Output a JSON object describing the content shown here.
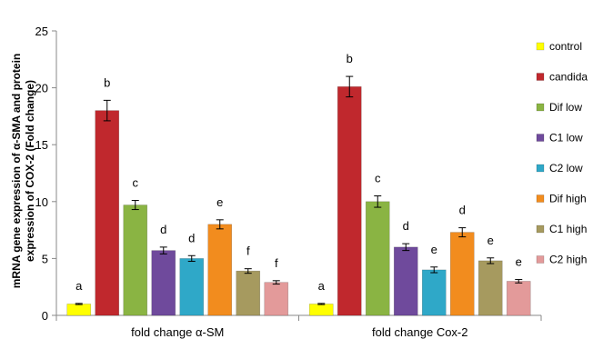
{
  "chart_data": {
    "type": "bar",
    "title": "",
    "xlabel": "",
    "ylabel_lines": [
      "mRNA gene expression of α-SMA and protein",
      "expression of COX-2 (Fold change)"
    ],
    "ylim": [
      0,
      25
    ],
    "yticks": [
      0,
      5,
      10,
      15,
      20,
      25
    ],
    "grid": false,
    "legend_position": "right",
    "categories": [
      "fold change α-SM",
      "fold change Cox-2"
    ],
    "series": [
      {
        "name": "control",
        "color": "#ffff00",
        "values": [
          1.0,
          1.0
        ],
        "errors": [
          0.05,
          0.05
        ],
        "labels": [
          "a",
          "a"
        ]
      },
      {
        "name": "candida",
        "color": "#c0282d",
        "values": [
          18.0,
          20.1
        ],
        "errors": [
          0.9,
          0.9
        ],
        "labels": [
          "b",
          "b"
        ]
      },
      {
        "name": "Dif low",
        "color": "#8ab443",
        "values": [
          9.7,
          10.0
        ],
        "errors": [
          0.4,
          0.5
        ],
        "labels": [
          "c",
          "c"
        ]
      },
      {
        "name": "C1 low",
        "color": "#6f4a9c",
        "values": [
          5.7,
          6.0
        ],
        "errors": [
          0.3,
          0.3
        ],
        "labels": [
          "d",
          "d"
        ]
      },
      {
        "name": "C2 low",
        "color": "#2fa8c8",
        "values": [
          5.0,
          4.0
        ],
        "errors": [
          0.25,
          0.25
        ],
        "labels": [
          "d",
          "e"
        ]
      },
      {
        "name": "Dif high",
        "color": "#f28c1e",
        "values": [
          8.0,
          7.3
        ],
        "errors": [
          0.4,
          0.4
        ],
        "labels": [
          "e",
          "d"
        ]
      },
      {
        "name": "C1 high",
        "color": "#a69a5f",
        "values": [
          3.9,
          4.8
        ],
        "errors": [
          0.2,
          0.25
        ],
        "labels": [
          "f",
          "e"
        ]
      },
      {
        "name": "C2 high",
        "color": "#e39a9a",
        "values": [
          2.9,
          3.0
        ],
        "errors": [
          0.15,
          0.15
        ],
        "labels": [
          "f",
          "e"
        ]
      }
    ]
  }
}
